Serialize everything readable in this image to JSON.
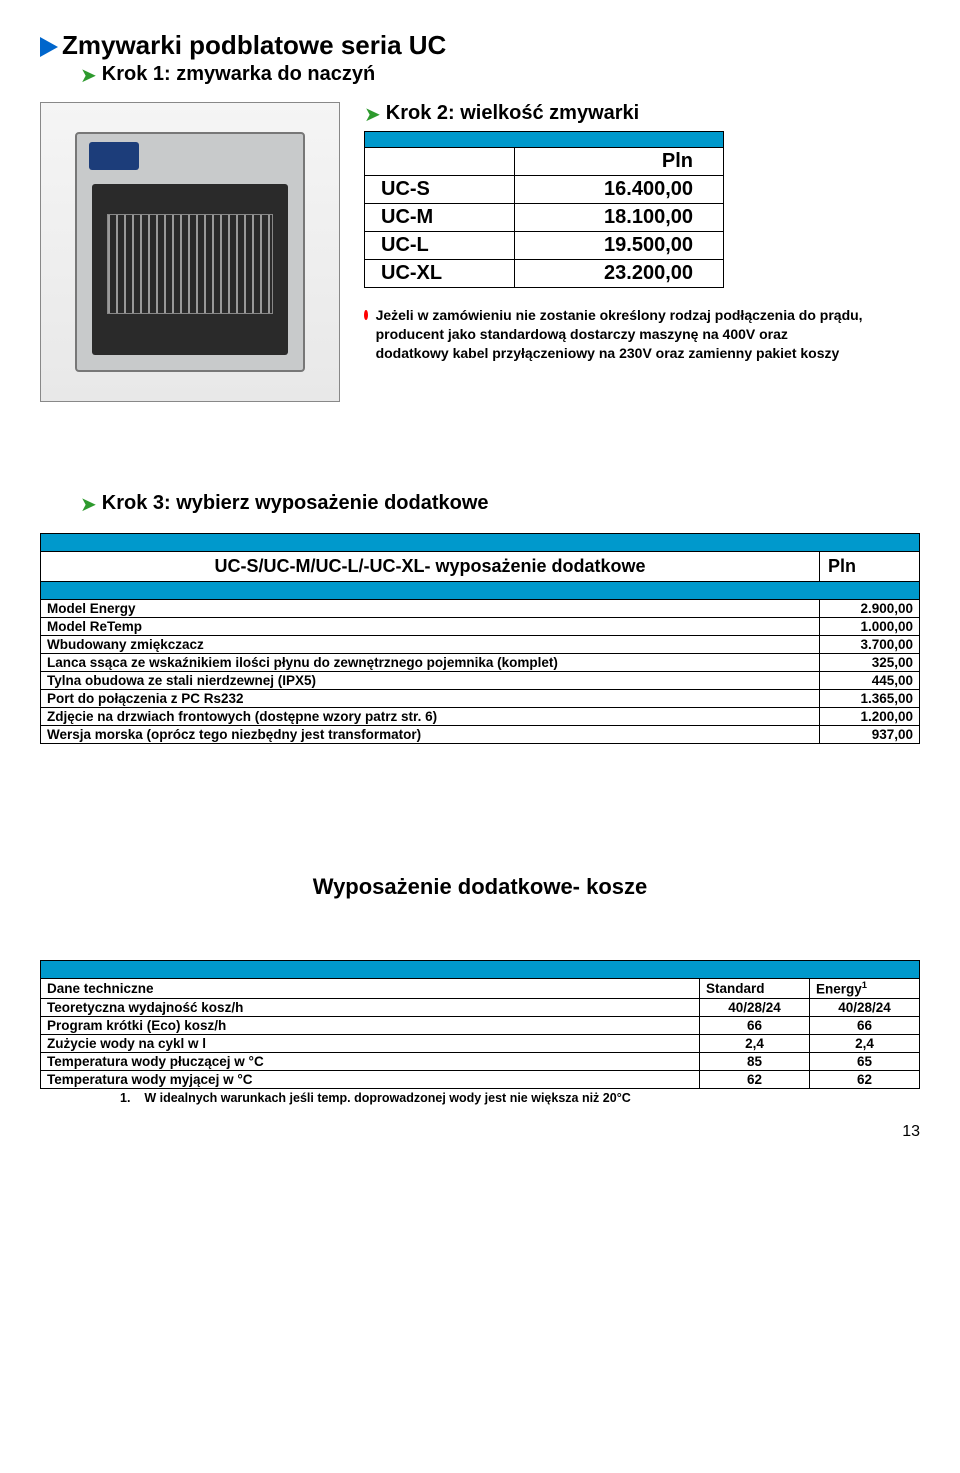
{
  "colors": {
    "accent_blue": "#009bcf",
    "arrow_blue": "#0066cc",
    "chevron_green": "#2e9a2e",
    "dot_red": "#ff0000",
    "border": "#000000",
    "text": "#000000"
  },
  "title": "Zmywarki podblatowe seria UC",
  "step1": "Krok 1: zmywarka do naczyń",
  "step2": "Krok 2:  wielkość zmywarki",
  "price_table": {
    "header": "Pln",
    "rows": [
      {
        "model": "UC-S",
        "price": "16.400,00"
      },
      {
        "model": "UC-M",
        "price": "18.100,00"
      },
      {
        "model": "UC-L",
        "price": "19.500,00"
      },
      {
        "model": "UC-XL",
        "price": "23.200,00"
      }
    ]
  },
  "note": "Jeżeli w zamówieniu nie zostanie określony rodzaj podłączenia do prądu, producent jako standardową dostarczy maszynę na 400V oraz dodatkowy kabel przyłączeniowy na 230V oraz zamienny pakiet koszy",
  "step3": "Krok 3: wybierz wyposażenie dodatkowe",
  "addon_table": {
    "header_left": "UC-S/UC-M/UC-L/-UC-XL- wyposażenie dodatkowe",
    "header_right": "Pln",
    "rows": [
      {
        "name": "Model Energy",
        "price": "2.900,00"
      },
      {
        "name": "Model ReTemp",
        "price": "1.000,00"
      },
      {
        "name": "Wbudowany zmiękczacz",
        "price": "3.700,00"
      },
      {
        "name": "Lanca ssąca ze wskaźnikiem ilości płynu do zewnętrznego pojemnika (komplet)",
        "price": "325,00"
      },
      {
        "name": "Tylna obudowa ze stali nierdzewnej (IPX5)",
        "price": "445,00"
      },
      {
        "name": "Port do połączenia z PC Rs232",
        "price": "1.365,00"
      },
      {
        "name": "Zdjęcie na drzwiach frontowych (dostępne wzory patrz str. 6)",
        "price": "1.200,00"
      },
      {
        "name": "Wersja morska (oprócz tego niezbędny jest transformator)",
        "price": "937,00"
      }
    ]
  },
  "section_head": "Wyposażenie dodatkowe- kosze",
  "tech_table": {
    "headers": [
      "Dane techniczne",
      "Standard",
      "Energy"
    ],
    "energy_sup": "1",
    "rows": [
      {
        "label": "Teoretyczna wydajność kosz/h",
        "std": "40/28/24",
        "energy": "40/28/24"
      },
      {
        "label": "Program krótki    (Eco)  kosz/h",
        "std": "66",
        "energy": "66"
      },
      {
        "label": "Zużycie wody na cykl w l",
        "std": "2,4",
        "energy": "2,4"
      },
      {
        "label": "Temperatura wody płuczącej w °C",
        "std": "85",
        "energy": "65"
      },
      {
        "label": "Temperatura wody myjącej w °C",
        "std": "62",
        "energy": "62"
      }
    ],
    "footnote_marker": "1.",
    "footnote": "W idealnych warunkach jeśli temp. doprowadzonej wody jest nie większa niż 20°C"
  },
  "page_number": "13"
}
